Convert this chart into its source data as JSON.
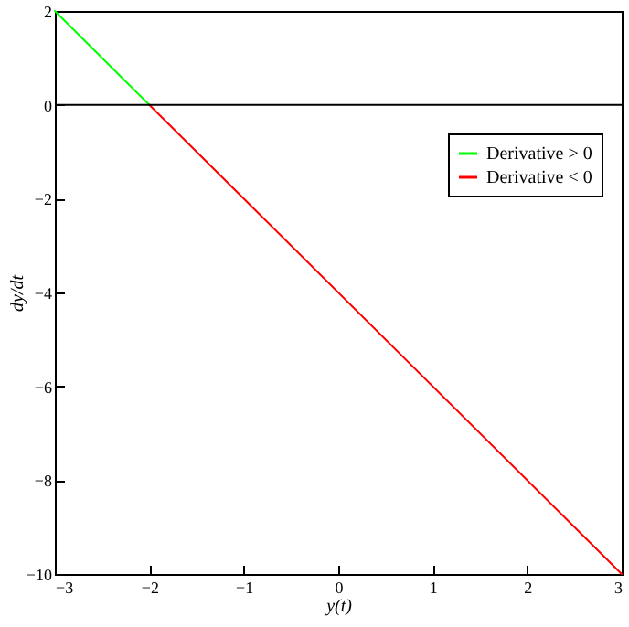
{
  "chart_data": {
    "type": "line",
    "xlabel": "y(t)",
    "ylabel": "dy/dt",
    "xlim": [
      -3,
      3
    ],
    "ylim": [
      -10,
      2
    ],
    "xticks": [
      -3,
      -2,
      -1,
      0,
      1,
      2,
      3
    ],
    "yticks": [
      -10,
      -8,
      -6,
      -4,
      -2,
      0,
      2
    ],
    "grid": false,
    "legend": "top right",
    "marker": "none",
    "line_style": "solid",
    "series": [
      {
        "name": "Derivative > 0",
        "color": "#00ff00",
        "x": [
          -3,
          -2
        ],
        "values": [
          2,
          0
        ]
      },
      {
        "name": "Derivative < 0",
        "color": "#ff0000",
        "x": [
          -2,
          3
        ],
        "values": [
          0,
          -10
        ]
      }
    ],
    "ref_lines": [
      {
        "axis": "y",
        "value": 0,
        "color": "#000000",
        "line_style": "solid"
      }
    ]
  }
}
